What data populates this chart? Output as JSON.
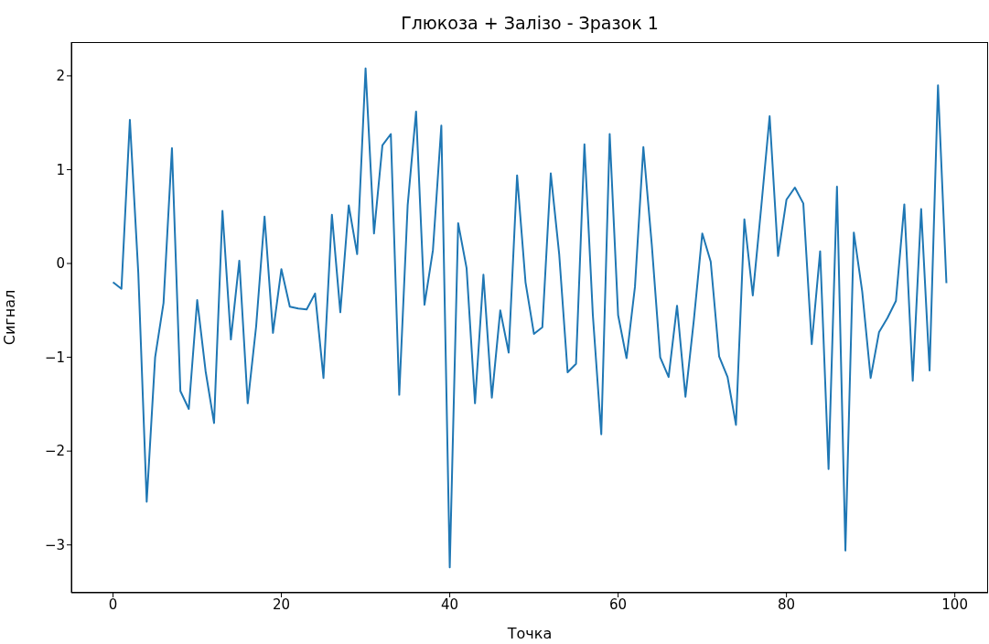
{
  "chart_data": {
    "type": "line",
    "title": "Глюкоза + Залізо - Зразок 1",
    "xlabel": "Точка",
    "ylabel": "Сигнал",
    "x": [
      0,
      1,
      2,
      3,
      4,
      5,
      6,
      7,
      8,
      9,
      10,
      11,
      12,
      13,
      14,
      15,
      16,
      17,
      18,
      19,
      20,
      21,
      22,
      23,
      24,
      25,
      26,
      27,
      28,
      29,
      30,
      31,
      32,
      33,
      34,
      35,
      36,
      37,
      38,
      39,
      40,
      41,
      42,
      43,
      44,
      45,
      46,
      47,
      48,
      49,
      50,
      51,
      52,
      53,
      54,
      55,
      56,
      57,
      58,
      59,
      60,
      61,
      62,
      63,
      64,
      65,
      66,
      67,
      68,
      69,
      70,
      71,
      72,
      73,
      74,
      75,
      76,
      77,
      78,
      79,
      80,
      81,
      82,
      83,
      84,
      85,
      86,
      87,
      88,
      89,
      90,
      91,
      92,
      93,
      94,
      95,
      96,
      97,
      98,
      99
    ],
    "series": [
      {
        "color": "#1f77b4",
        "values": [
          -0.2,
          -0.27,
          1.53,
          -0.1,
          -2.54,
          -1.0,
          -0.42,
          1.23,
          -1.36,
          -1.55,
          -0.39,
          -1.15,
          -1.7,
          0.56,
          -0.81,
          0.03,
          -1.49,
          -0.67,
          0.5,
          -0.74,
          -0.06,
          -0.46,
          -0.48,
          -0.49,
          -0.32,
          -1.22,
          0.52,
          -0.52,
          0.62,
          0.1,
          2.08,
          0.32,
          1.26,
          1.38,
          -1.4,
          0.62,
          1.62,
          -0.44,
          0.14,
          1.47,
          -3.24,
          0.43,
          -0.05,
          -1.49,
          -0.12,
          -1.43,
          -0.5,
          -0.95,
          0.94,
          -0.2,
          -0.75,
          -0.68,
          0.96,
          0.1,
          -1.16,
          -1.07,
          1.27,
          -0.55,
          -1.82,
          1.38,
          -0.55,
          -1.01,
          -0.25,
          1.24,
          0.2,
          -1.0,
          -1.21,
          -0.45,
          -1.42,
          -0.6,
          0.32,
          0.02,
          -0.99,
          -1.21,
          -1.72,
          0.47,
          -0.34,
          0.6,
          1.57,
          0.08,
          0.68,
          0.81,
          0.64,
          -0.86,
          0.13,
          -2.19,
          0.82,
          -3.06,
          0.33,
          -0.3,
          -1.22,
          -0.73,
          -0.58,
          -0.4,
          0.63,
          -1.25,
          0.58,
          -1.14,
          1.9,
          -0.21
        ]
      }
    ],
    "xlim": [
      -4.95,
      103.95
    ],
    "xticks": [
      0,
      20,
      40,
      60,
      80,
      100
    ],
    "ylim": [
      -3.51,
      2.36
    ],
    "yticks": [
      -3,
      -2,
      -1,
      0,
      1,
      2
    ],
    "grid": false,
    "marker": "none",
    "line_style": "solid"
  }
}
